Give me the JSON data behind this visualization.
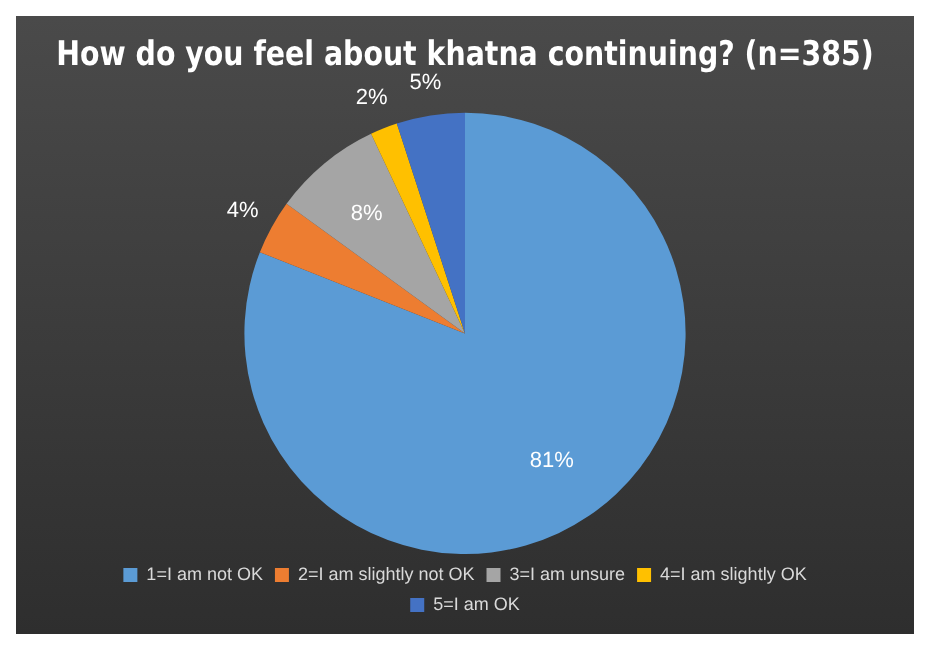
{
  "chart_data": {
    "type": "pie",
    "title": "How do you feel about khatna continuing? (n=385)",
    "categories": [
      "1=I am not OK",
      "2=I am slightly not OK",
      "3=I am unsure",
      "4=I am slightly OK",
      "5=I am OK"
    ],
    "values": [
      81,
      4,
      8,
      2,
      5
    ],
    "value_labels": [
      "81%",
      "4%",
      "8%",
      "2%",
      "5%"
    ],
    "colors": [
      "#5b9bd5",
      "#ed7d31",
      "#a5a5a5",
      "#ffc000",
      "#4472c4"
    ],
    "legend": "bottom"
  }
}
